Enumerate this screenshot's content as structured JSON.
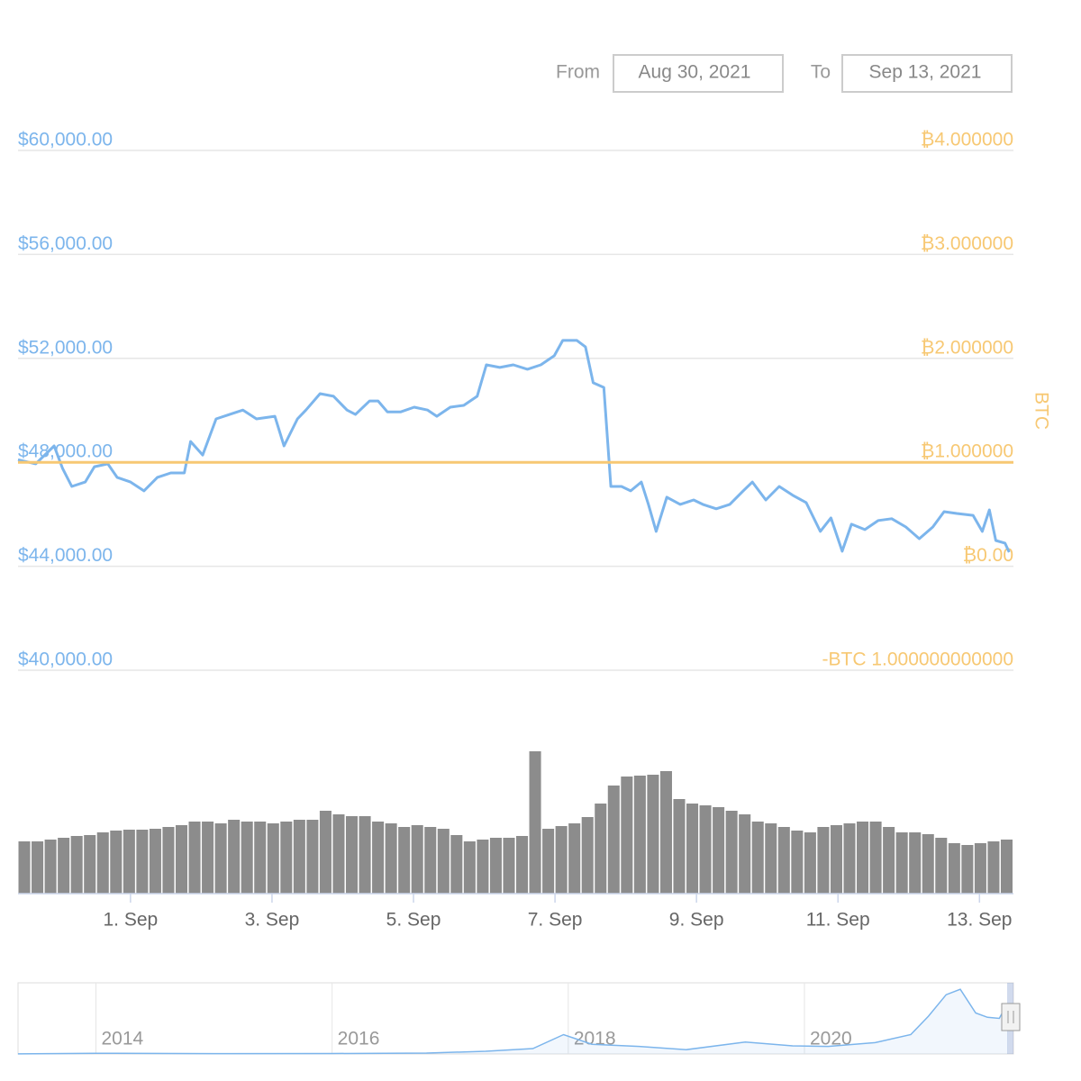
{
  "range_selector": {
    "from_label": "From",
    "from": "Aug 30, 2021",
    "to_label": "To",
    "to": "Sep 13, 2021"
  },
  "chart_data": {
    "type": "line",
    "y2_label": "BTC",
    "xlim": [
      0.41,
      14.48
    ],
    "xticks": [
      {
        "value": 2,
        "label": "1. Sep"
      },
      {
        "value": 4,
        "label": "3. Sep"
      },
      {
        "value": 6,
        "label": "5. Sep"
      },
      {
        "value": 8,
        "label": "7. Sep"
      },
      {
        "value": 10,
        "label": "9. Sep"
      },
      {
        "value": 12,
        "label": "11. Sep"
      },
      {
        "value": 14,
        "label": "13. Sep"
      }
    ],
    "ylim": [
      40000,
      60000
    ],
    "yticks": [
      {
        "value": 60000,
        "label": "$60,000.00"
      },
      {
        "value": 56000,
        "label": "$56,000.00"
      },
      {
        "value": 52000,
        "label": "$52,000.00"
      },
      {
        "value": 48000,
        "label": "$48,000.00"
      },
      {
        "value": 44000,
        "label": "$44,000.00"
      },
      {
        "value": 40000,
        "label": "$40,000.00"
      }
    ],
    "y2lim": [
      -1,
      4
    ],
    "y2ticks": [
      {
        "value": 4,
        "label": "₿4.000000"
      },
      {
        "value": 3,
        "label": "₿3.000000"
      },
      {
        "value": 2,
        "label": "₿2.000000"
      },
      {
        "value": 1,
        "label": "₿1.000000"
      },
      {
        "value": 0,
        "label": "₿0.00"
      },
      {
        "value": -1,
        "label": "-BTC 1.000000000000"
      }
    ],
    "grid": true,
    "series": [
      {
        "color": "#7cb5ec",
        "x": [
          0.41,
          0.66,
          0.92,
          1.04,
          1.17,
          1.36,
          1.49,
          1.68,
          1.81,
          2.0,
          2.19,
          2.38,
          2.57,
          2.76,
          2.85,
          3.02,
          3.21,
          3.4,
          3.59,
          3.78,
          4.04,
          4.17,
          4.36,
          4.48,
          4.68,
          4.87,
          5.06,
          5.18,
          5.38,
          5.5,
          5.63,
          5.82,
          6.01,
          6.2,
          6.33,
          6.52,
          6.71,
          6.9,
          7.03,
          7.22,
          7.41,
          7.61,
          7.8,
          7.99,
          8.11,
          8.31,
          8.43,
          8.54,
          8.69,
          8.79,
          8.94,
          9.07,
          9.22,
          9.32,
          9.43,
          9.58,
          9.77,
          9.96,
          10.09,
          10.28,
          10.47,
          10.66,
          10.79,
          10.98,
          11.17,
          11.36,
          11.55,
          11.75,
          11.9,
          12.06,
          12.19,
          12.38,
          12.57,
          12.76,
          12.96,
          13.15,
          13.34,
          13.5,
          13.68,
          13.91,
          14.04,
          14.14,
          14.23,
          14.36,
          14.42
        ],
        "values": [
          48100,
          47940,
          48630,
          47760,
          47070,
          47240,
          47830,
          47940,
          47420,
          47240,
          46900,
          47420,
          47590,
          47590,
          48800,
          48280,
          49670,
          49840,
          50010,
          49670,
          49770,
          48630,
          49670,
          50010,
          50640,
          50540,
          50010,
          49840,
          50360,
          50360,
          49940,
          49940,
          50120,
          50010,
          49770,
          50120,
          50190,
          50540,
          51750,
          51650,
          51750,
          51580,
          51750,
          52100,
          52690,
          52690,
          52440,
          51060,
          50880,
          47070,
          47070,
          46900,
          47240,
          46380,
          45340,
          46660,
          46380,
          46550,
          46380,
          46210,
          46380,
          46900,
          47240,
          46550,
          47070,
          46730,
          46450,
          45340,
          45860,
          44580,
          45620,
          45410,
          45760,
          45830,
          45510,
          45060,
          45510,
          46100,
          46030,
          45960,
          45340,
          46170,
          44990,
          44890,
          44540
        ]
      },
      {
        "color": "#f7c873",
        "axis": "y2",
        "x": [
          0.41,
          14.48
        ],
        "values": [
          1,
          1
        ]
      }
    ],
    "volume": {
      "color": "#8c8c8c",
      "ylim": [
        0,
        160
      ],
      "values": [
        58,
        58,
        60,
        62,
        64,
        65,
        68,
        70,
        71,
        71,
        72,
        74,
        76,
        80,
        80,
        78,
        82,
        80,
        80,
        78,
        80,
        82,
        82,
        92,
        88,
        86,
        86,
        80,
        78,
        74,
        76,
        74,
        72,
        65,
        58,
        60,
        62,
        62,
        64,
        158,
        72,
        75,
        78,
        85,
        100,
        120,
        130,
        131,
        132,
        136,
        105,
        100,
        98,
        96,
        92,
        88,
        80,
        78,
        74,
        70,
        68,
        74,
        76,
        78,
        80,
        80,
        74,
        68,
        68,
        66,
        62,
        56,
        54,
        56,
        58,
        60
      ]
    },
    "navigator": {
      "color": "#7cb5ec",
      "xlim": [
        2013.34,
        2021.77
      ],
      "ylim": [
        0,
        66000
      ],
      "xticks": [
        2014,
        2016,
        2018,
        2020
      ],
      "x": [
        2013.34,
        2014.0,
        2015.0,
        2016.0,
        2016.8,
        2017.3,
        2017.7,
        2017.96,
        2018.2,
        2018.6,
        2019.0,
        2019.5,
        2019.9,
        2020.2,
        2020.6,
        2020.9,
        2021.05,
        2021.2,
        2021.32,
        2021.45,
        2021.55,
        2021.65,
        2021.72
      ],
      "values": [
        100,
        700,
        300,
        400,
        800,
        2500,
        5000,
        18000,
        9000,
        7000,
        4000,
        11000,
        7500,
        7000,
        10500,
        18000,
        35000,
        55000,
        60000,
        38000,
        34000,
        33000,
        47000
      ]
    }
  }
}
